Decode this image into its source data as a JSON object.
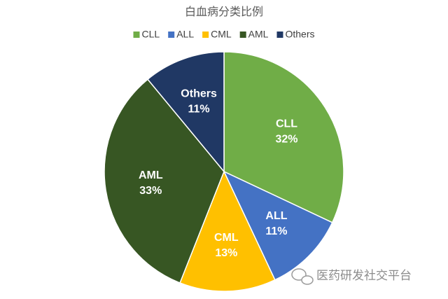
{
  "chart_data": {
    "type": "pie",
    "title": "白血病分类比例",
    "categories": [
      "CLL",
      "ALL",
      "CML",
      "AML",
      "Others"
    ],
    "values": [
      32,
      11,
      13,
      33,
      11
    ],
    "value_labels": [
      "32%",
      "11%",
      "13%",
      "33%",
      "11%"
    ],
    "colors": [
      "#70ad47",
      "#4472c4",
      "#ffc000",
      "#375623",
      "#203864"
    ],
    "legend": "top",
    "watermark": "医药研发社交平台"
  }
}
